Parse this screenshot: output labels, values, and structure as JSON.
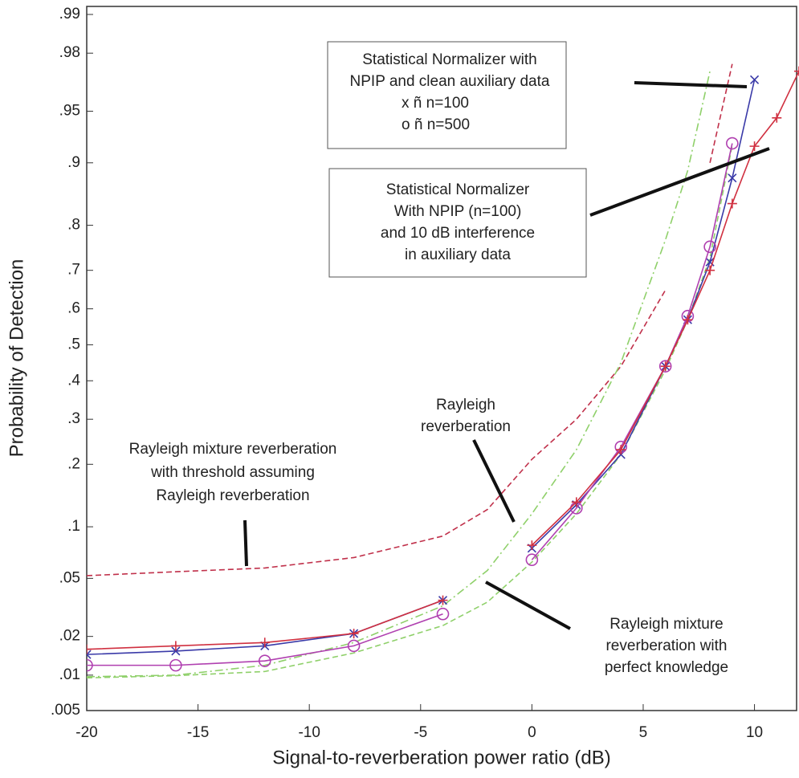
{
  "chart_data": {
    "type": "line",
    "xlabel": "Signal-to-reverberation power ratio (dB)",
    "ylabel": "Probability of Detection",
    "yscale": "probability",
    "xlim": [
      -20,
      12
    ],
    "ylim": [
      0.005,
      0.99
    ],
    "xticks": [
      -20,
      -15,
      -10,
      -5,
      0,
      5,
      10
    ],
    "yticks": [
      {
        "value": 0.005,
        "label": ".005"
      },
      {
        "value": 0.01,
        "label": ".01"
      },
      {
        "value": 0.02,
        "label": ".02"
      },
      {
        "value": 0.05,
        "label": ".05"
      },
      {
        "value": 0.1,
        "label": ".1"
      },
      {
        "value": 0.2,
        "label": ".2"
      },
      {
        "value": 0.3,
        "label": ".3"
      },
      {
        "value": 0.4,
        "label": ".4"
      },
      {
        "value": 0.5,
        "label": ".5"
      },
      {
        "value": 0.6,
        "label": ".6"
      },
      {
        "value": 0.7,
        "label": ".7"
      },
      {
        "value": 0.8,
        "label": ".8"
      },
      {
        "value": 0.9,
        "label": ".9"
      },
      {
        "value": 0.95,
        "label": ".95"
      },
      {
        "value": 0.98,
        "label": ".98"
      },
      {
        "value": 0.99,
        "label": ".99"
      }
    ],
    "x": [
      -20,
      -16,
      -12,
      -8,
      -4,
      -2,
      0,
      2,
      4,
      6,
      7,
      8,
      9,
      10,
      11,
      12
    ],
    "series": [
      {
        "color": "#c0304a",
        "dash": "dashed",
        "marker": "none",
        "values": [
          0.052,
          0.055,
          0.058,
          0.067,
          0.089,
          0.123,
          0.21,
          0.3,
          0.44,
          0.65,
          null,
          0.9,
          0.976,
          null,
          null,
          null
        ]
      },
      {
        "color": "#8fd06a",
        "dash": "dashdot",
        "marker": "none",
        "values": [
          0.0097,
          0.01,
          0.012,
          0.018,
          0.033,
          0.056,
          0.117,
          0.23,
          0.45,
          0.77,
          0.89,
          0.973,
          null,
          null,
          null,
          null
        ]
      },
      {
        "color": "#8fd06a",
        "dash": "dashed",
        "marker": "none",
        "values": [
          0.0095,
          0.0099,
          0.0107,
          0.015,
          0.024,
          0.035,
          0.063,
          0.117,
          0.22,
          0.43,
          0.57,
          0.73,
          0.92,
          null,
          null,
          null
        ]
      },
      {
        "color": "#3a3aa8",
        "dash": "solid",
        "marker": "x",
        "values": [
          0.0146,
          0.0155,
          0.017,
          0.021,
          0.036,
          null,
          0.076,
          0.13,
          0.22,
          0.44,
          0.57,
          0.72,
          0.88,
          0.969,
          null,
          null
        ]
      },
      {
        "color": "#b040b0",
        "dash": "solid",
        "marker": "o",
        "values": [
          0.012,
          0.012,
          0.013,
          0.017,
          0.029,
          null,
          0.065,
          0.125,
          0.236,
          0.44,
          0.58,
          0.755,
          0.922,
          null,
          null,
          null
        ]
      },
      {
        "color": "#d03040",
        "dash": "solid",
        "marker": "+",
        "values": [
          0.016,
          0.017,
          0.018,
          0.021,
          0.036,
          null,
          0.079,
          0.134,
          0.23,
          0.44,
          0.57,
          0.7,
          0.84,
          0.919,
          0.945,
          0.973
        ]
      }
    ],
    "annotations": [
      {
        "lines": [
          "Statistical Normalizer with",
          "NPIP and clean auxiliary data",
          "x ñ  n=100",
          "o ñ  n=500"
        ]
      },
      {
        "lines": [
          "Statistical Normalizer",
          "With NPIP (n=100)",
          "and 10 dB interference",
          "in auxiliary data"
        ]
      },
      {
        "lines": [
          "Rayleigh",
          "reverberation"
        ]
      },
      {
        "lines": [
          "Rayleigh mixture reverberation",
          "with threshold assuming",
          "Rayleigh reverberation"
        ]
      },
      {
        "lines": [
          "Rayleigh mixture",
          "reverberation with",
          "perfect knowledge"
        ]
      }
    ]
  }
}
